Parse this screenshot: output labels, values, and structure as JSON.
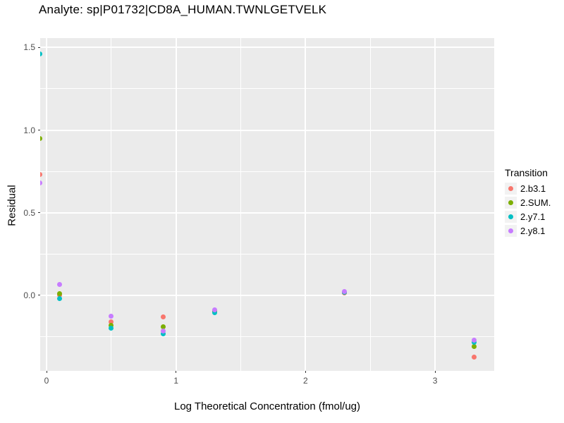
{
  "title": "Analyte: sp|P01732|CD8A_HUMAN.TWNLGETVELK",
  "colors": {
    "panel_background": "#EBEBEB",
    "gridline": "#FFFFFF",
    "tick_mark": "#333333",
    "tick_label": "#4D4D4D",
    "legend_key_background": "#F2F2F2",
    "series_red": "#F8766D",
    "series_green": "#7CAE00",
    "series_teal": "#00BFC4",
    "series_purple": "#C77CFF"
  },
  "chart_data": {
    "type": "scatter",
    "title": "Analyte: sp|P01732|CD8A_HUMAN.TWNLGETVELK",
    "xlabel": "Log Theoretical Concentration (fmol/ug)",
    "ylabel": "Residual",
    "xlim": [
      -0.049,
      3.457
    ],
    "ylim": [
      -0.457,
      1.557
    ],
    "x_ticks": [
      0,
      1,
      2,
      3
    ],
    "x_tick_labels": [
      "0",
      "1",
      "2",
      "3"
    ],
    "x_minor_gridlines": [
      0.5,
      1.5,
      2.5
    ],
    "y_ticks": [
      0.0,
      0.5,
      1.0,
      1.5
    ],
    "y_tick_labels": [
      "0.0",
      "0.5",
      "1.0",
      "1.5"
    ],
    "y_minor_gridlines": [
      -0.25,
      0.25,
      0.75,
      1.25
    ],
    "grid": true,
    "legend_title": "Transition",
    "legend_position": "right",
    "series": [
      {
        "name": "2.b3.1",
        "color": "#F8766D",
        "points": [
          [
            -0.05,
            0.73
          ],
          [
            0.1,
            0.0
          ],
          [
            0.5,
            -0.16
          ],
          [
            0.9,
            -0.13
          ],
          [
            1.3,
            -0.095
          ],
          [
            2.3,
            0.015
          ],
          [
            3.3,
            -0.375
          ]
        ]
      },
      {
        "name": "2.SUM.",
        "color": "#7CAE00",
        "points": [
          [
            -0.05,
            0.95
          ],
          [
            0.1,
            0.01
          ],
          [
            0.5,
            -0.18
          ],
          [
            0.9,
            -0.19
          ],
          [
            1.3,
            -0.095
          ],
          [
            2.3,
            0.02
          ],
          [
            3.3,
            -0.31
          ]
        ]
      },
      {
        "name": "2.y7.1",
        "color": "#00BFC4",
        "points": [
          [
            -0.05,
            1.46
          ],
          [
            0.1,
            -0.02
          ],
          [
            0.5,
            -0.2
          ],
          [
            0.9,
            -0.235
          ],
          [
            1.3,
            -0.105
          ],
          [
            2.3,
            0.02
          ],
          [
            3.3,
            -0.285
          ]
        ]
      },
      {
        "name": "2.y8.1",
        "color": "#C77CFF",
        "points": [
          [
            -0.05,
            0.68
          ],
          [
            0.1,
            0.065
          ],
          [
            0.5,
            -0.125
          ],
          [
            0.9,
            -0.215
          ],
          [
            1.3,
            -0.09
          ],
          [
            2.3,
            0.025
          ],
          [
            3.3,
            -0.27
          ]
        ]
      }
    ]
  }
}
